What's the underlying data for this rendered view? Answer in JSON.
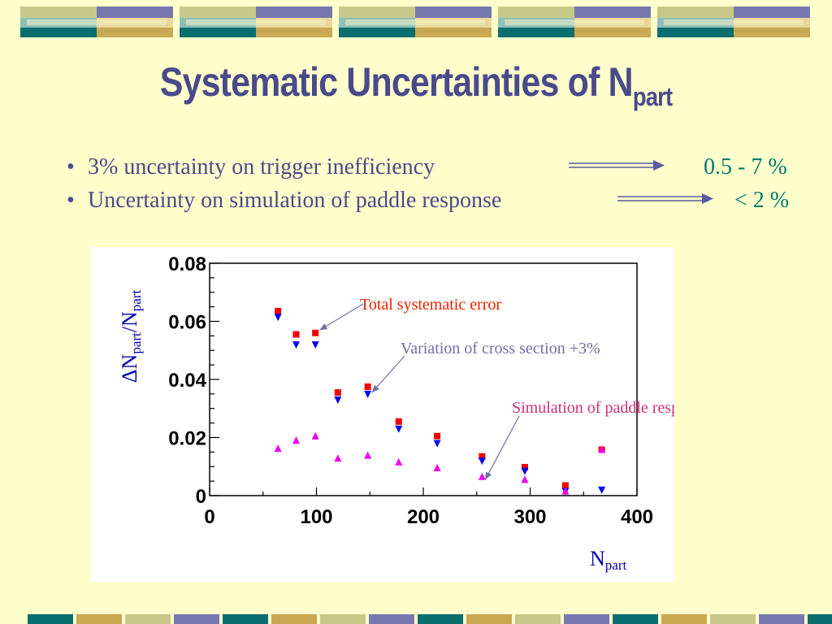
{
  "slide": {
    "title_main": "Systematic Uncertainties of N",
    "title_sub": "part",
    "bullets": [
      {
        "text": "3% uncertainty on trigger inefficiency",
        "result": "0.5 - 7 %"
      },
      {
        "text": "Uncertainty on simulation of paddle response",
        "result": "< 2 %"
      }
    ],
    "bullet_glyph": "•"
  },
  "colors": {
    "background": "#ffffcc",
    "title": "#4a4a8a",
    "result_text": "#007a6e",
    "band_olive": "#c8c88a",
    "band_purple": "#7878b0",
    "band_teal": "#0a6e6e",
    "band_gold": "#c8a850",
    "band_light_teal": "#8fc0b8",
    "band_cream": "#e8d89a"
  },
  "chart_data": {
    "type": "scatter",
    "xlabel": "N",
    "xlabel_sub": "part",
    "ylabel_delta": "Δ",
    "ylabel_n1": "N",
    "ylabel_sub1": "part",
    "ylabel_slash": "/N",
    "ylabel_sub2": "part",
    "xlim": [
      0,
      400
    ],
    "ylim": [
      0,
      0.08
    ],
    "x_ticks": [
      "0",
      "100",
      "200",
      "300",
      "400"
    ],
    "x_tick_values": [
      0,
      100,
      200,
      300,
      400
    ],
    "y_ticks": [
      "0",
      "0.02",
      "0.04",
      "0.06",
      "0.08"
    ],
    "y_tick_values": [
      0,
      0.02,
      0.04,
      0.06,
      0.08
    ],
    "series": [
      {
        "marker": "square",
        "color": "#ee0000",
        "x": [
          64,
          81,
          99,
          120,
          148,
          177,
          213,
          255,
          295,
          333,
          367
        ],
        "y": [
          0.0635,
          0.0555,
          0.056,
          0.0355,
          0.0375,
          0.0255,
          0.0205,
          0.0135,
          0.0098,
          0.0035,
          0.0158
        ]
      },
      {
        "marker": "triangle-down",
        "color": "#0000ee",
        "x": [
          64,
          81,
          99,
          120,
          148,
          177,
          213,
          255,
          295,
          333,
          367
        ],
        "y": [
          0.0615,
          0.052,
          0.052,
          0.033,
          0.035,
          0.023,
          0.018,
          0.012,
          0.0085,
          0.0015,
          0.002
        ]
      },
      {
        "marker": "triangle-up",
        "color": "#ee00ee",
        "x": [
          64,
          81,
          99,
          120,
          148,
          177,
          213,
          255,
          295,
          333,
          367
        ],
        "y": [
          0.0162,
          0.019,
          0.0205,
          0.0128,
          0.0138,
          0.0115,
          0.0095,
          0.0065,
          0.0055,
          0.0015,
          0.0158
        ]
      }
    ],
    "annotations": [
      {
        "text": "Total systematic error",
        "color": "#ee2200",
        "arrow_to": [
          103,
          0.057
        ]
      },
      {
        "text": "Variation of cross section +3%",
        "color": "#7070a0",
        "arrow_to": [
          152,
          0.0355
        ]
      },
      {
        "text": "Simulation of paddle response",
        "color": "#d0307a",
        "arrow_to": [
          258,
          0.0055
        ]
      }
    ]
  }
}
